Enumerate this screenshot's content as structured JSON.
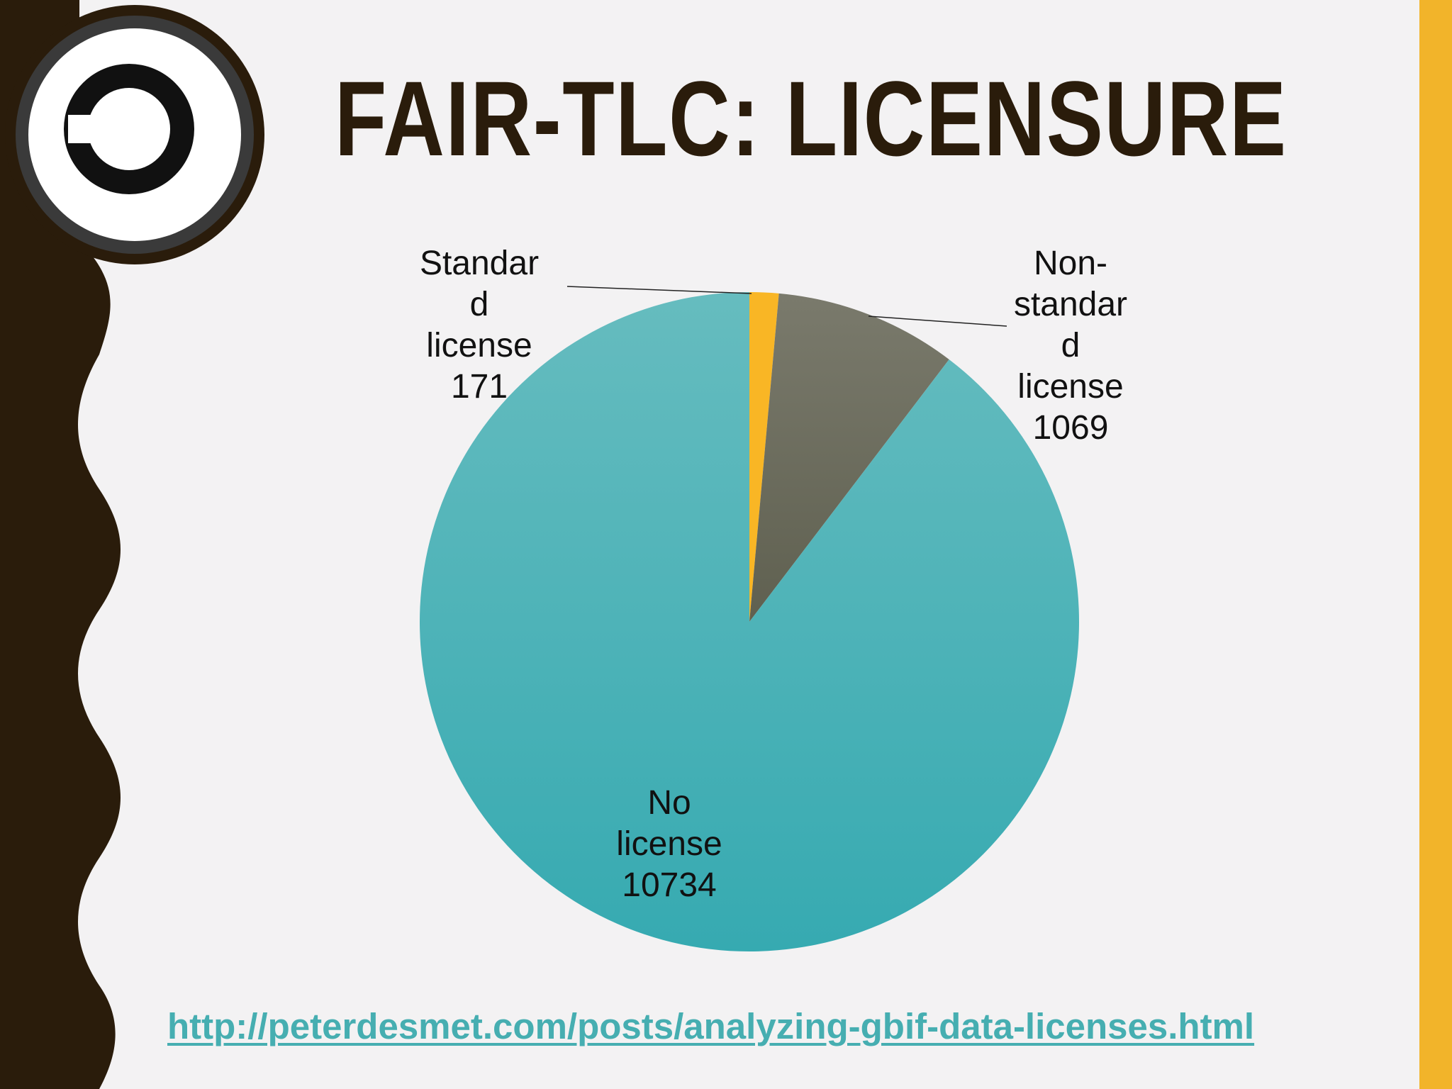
{
  "title": "FAIR-TLC: LICENSURE",
  "logo": {
    "icon": "copyleft-icon"
  },
  "chart_data": {
    "type": "pie",
    "categories": [
      "Standard license",
      "Non-standard license",
      "No license"
    ],
    "values": [
      171,
      1069,
      10734
    ],
    "slices": [
      {
        "label_lines": [
          "Standar",
          "d",
          "license",
          "171"
        ],
        "value": 171,
        "color": "#f9b625"
      },
      {
        "label_lines": [
          "Non-",
          "standar",
          "d",
          "license",
          "1069"
        ],
        "value": 1069,
        "color": "#6c6b5c"
      },
      {
        "label_lines": [
          "No",
          "license",
          "10734"
        ],
        "value": 10734,
        "color": "#43b2b8"
      }
    ]
  },
  "source_link": {
    "text": "http://peterdesmet.com/posts/analyzing-gbif-data-licenses.html"
  },
  "colors": {
    "background": "#f3f2f3",
    "left_band": "#2a1c0b",
    "right_accent": "#f2b42a",
    "title": "#2a1c0b",
    "link": "#46aeb1"
  }
}
